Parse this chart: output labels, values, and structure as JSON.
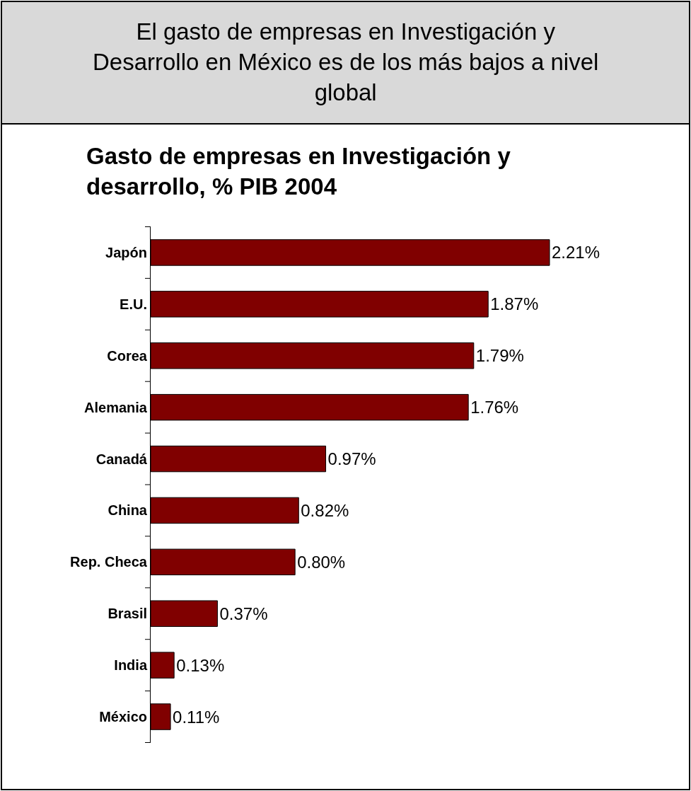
{
  "chart_data": {
    "type": "bar",
    "orientation": "horizontal",
    "title": "El gasto de empresas en Investigación y\nDesarrollo en México es de los más bajos a nivel\nglobal",
    "subtitle": "Gasto de empresas en Investigación y\ndesarrollo, % PIB 2004",
    "categories": [
      "Japón",
      "E.U.",
      "Corea",
      "Alemania",
      "Canadá",
      "China",
      "Rep. Checa",
      "Brasil",
      "India",
      "México"
    ],
    "values": [
      2.21,
      1.87,
      1.79,
      1.76,
      0.97,
      0.82,
      0.8,
      0.37,
      0.13,
      0.11
    ],
    "value_labels": [
      "2.21%",
      "1.87%",
      "1.79%",
      "1.76%",
      "0.97%",
      "0.82%",
      "0.80%",
      "0.37%",
      "0.13%",
      "0.11%"
    ],
    "color": "#800000",
    "legend": false,
    "tick_labels": "y"
  }
}
